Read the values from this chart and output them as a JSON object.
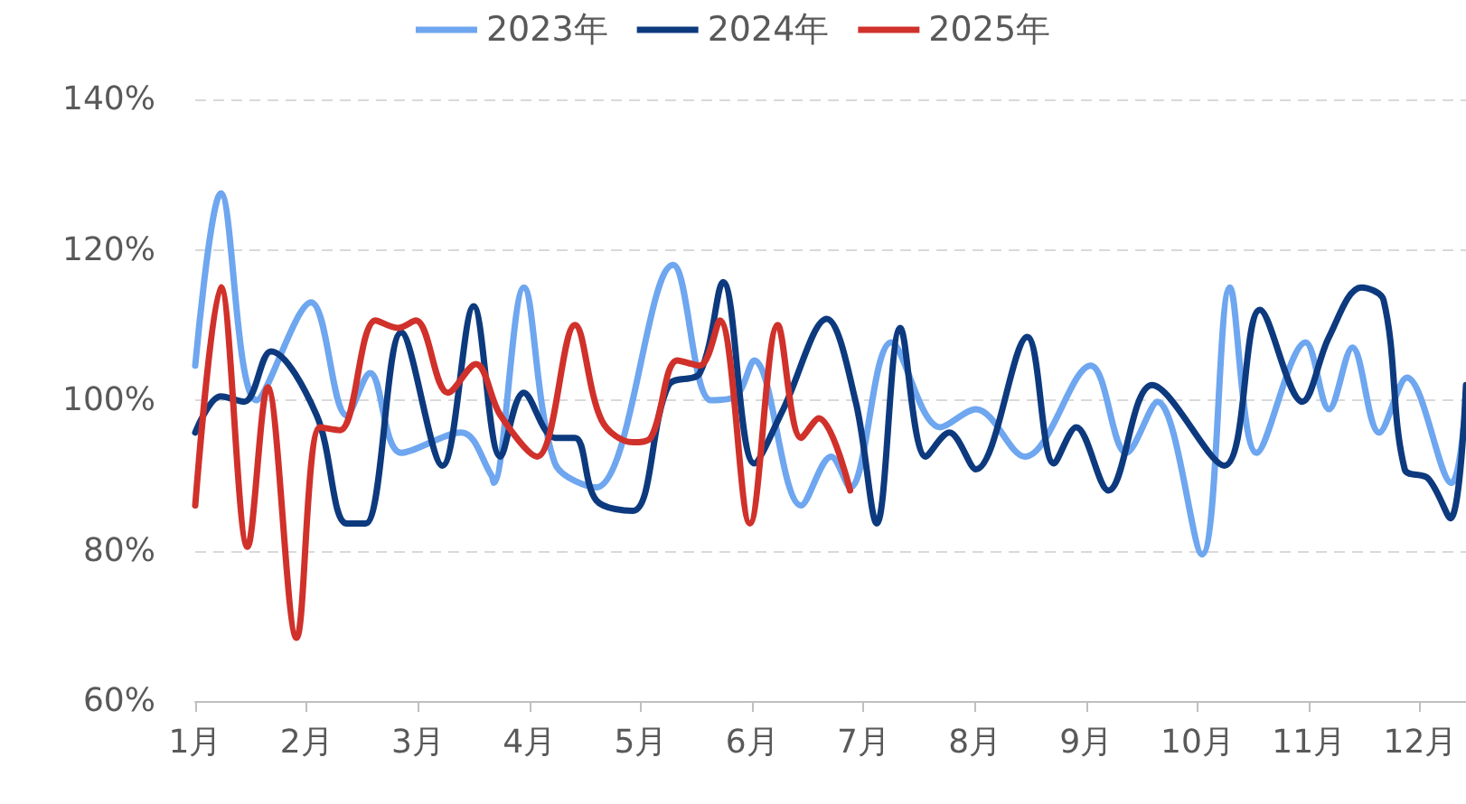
{
  "chart_data": {
    "type": "line",
    "xlim": [
      1,
      12.41
    ],
    "xticks": [
      {
        "value": 1,
        "label": "1月"
      },
      {
        "value": 2,
        "label": "2月"
      },
      {
        "value": 3,
        "label": "3月"
      },
      {
        "value": 4,
        "label": "4月"
      },
      {
        "value": 5,
        "label": "5月"
      },
      {
        "value": 6,
        "label": "6月"
      },
      {
        "value": 7,
        "label": "7月"
      },
      {
        "value": 8,
        "label": "8月"
      },
      {
        "value": 9,
        "label": "9月"
      },
      {
        "value": 10,
        "label": "10月"
      },
      {
        "value": 11,
        "label": "11月"
      },
      {
        "value": 12,
        "label": "12月"
      }
    ],
    "ylim": [
      60,
      140
    ],
    "yticks": [
      {
        "value": 60,
        "label": "60%"
      },
      {
        "value": 80,
        "label": "80%"
      },
      {
        "value": 100,
        "label": "100%"
      },
      {
        "value": 120,
        "label": "120%"
      },
      {
        "value": 140,
        "label": "140%"
      }
    ],
    "grid": "y",
    "legend": "top",
    "marker": "none",
    "line_style": "solid",
    "series": [
      {
        "name": "2023年",
        "color": "#6ea6ef",
        "x": [
          1.0,
          1.23,
          1.55,
          2.04,
          2.36,
          2.57,
          2.85,
          3.39,
          3.66,
          3.68,
          3.95,
          4.23,
          4.6,
          5.29,
          5.63,
          5.85,
          6.02,
          6.44,
          6.71,
          6.88,
          7.25,
          7.69,
          8.01,
          8.45,
          9.04,
          9.36,
          9.64,
          10.04,
          10.29,
          10.53,
          10.97,
          11.18,
          11.39,
          11.63,
          11.88,
          12.28,
          12.41
        ],
        "values": [
          104.6,
          127.5,
          100,
          113,
          98,
          103.6,
          93,
          95.7,
          90,
          89,
          115,
          91.6,
          88.4,
          118,
          100,
          100.5,
          105.3,
          86,
          92.5,
          88.4,
          107.7,
          96.4,
          98.8,
          92.5,
          104.6,
          93,
          99.8,
          79.5,
          115,
          93,
          107.7,
          98.8,
          107,
          95.7,
          103,
          89,
          100
        ]
      },
      {
        "name": "2024年",
        "color": "#0d3a7e",
        "x": [
          1.0,
          1.23,
          1.44,
          1.68,
          2.09,
          2.36,
          2.53,
          2.85,
          3.22,
          3.5,
          3.74,
          3.95,
          4.23,
          4.41,
          4.6,
          4.93,
          5.25,
          5.53,
          5.74,
          6.02,
          6.28,
          6.67,
          6.93,
          7.12,
          7.33,
          7.56,
          7.77,
          8.01,
          8.47,
          8.71,
          8.91,
          9.2,
          9.59,
          10.24,
          10.56,
          10.94,
          11.18,
          11.47,
          11.67,
          11.86,
          12.07,
          12.27,
          12.41
        ],
        "values": [
          95.7,
          100.5,
          99.8,
          106.5,
          98,
          83.6,
          83.6,
          109,
          91.3,
          112.5,
          92.5,
          101,
          95,
          95,
          86.7,
          85.3,
          102,
          103.6,
          115.7,
          91.6,
          98.8,
          110.8,
          99.8,
          83.6,
          109.6,
          92.5,
          95.7,
          90.8,
          108.4,
          91.6,
          96.4,
          88,
          102,
          91.3,
          112,
          99.8,
          108.4,
          115,
          113.3,
          90.8,
          89.6,
          84.3,
          102
        ]
      },
      {
        "name": "2025年",
        "color": "#d0312b",
        "x": [
          1.0,
          1.23,
          1.47,
          1.65,
          1.91,
          2.12,
          2.3,
          2.62,
          2.82,
          2.98,
          3.27,
          3.52,
          3.74,
          4.07,
          4.41,
          4.65,
          4.93,
          5.09,
          5.33,
          5.53,
          5.71,
          5.98,
          6.23,
          6.44,
          6.6,
          6.88
        ],
        "values": [
          86,
          115,
          80.5,
          101.7,
          68.4,
          96.4,
          96,
          110.6,
          109.6,
          110.6,
          101,
          104.8,
          98,
          92.5,
          110,
          97.3,
          94.4,
          95,
          105.3,
          104.6,
          110.6,
          83.6,
          110,
          95,
          97.6,
          88
        ]
      }
    ]
  }
}
